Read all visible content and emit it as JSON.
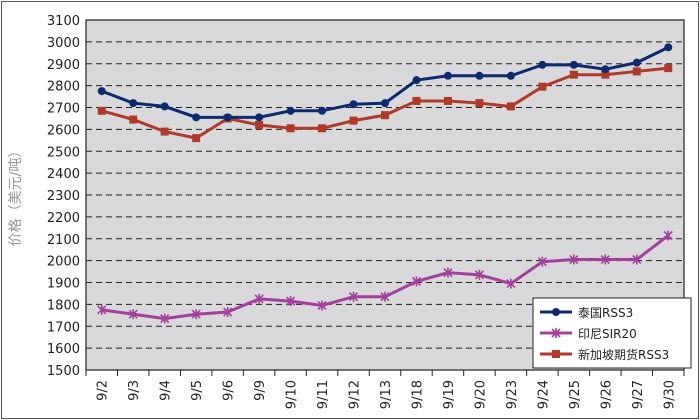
{
  "chart_data": {
    "type": "line",
    "title": "",
    "xlabel": "",
    "ylabel": "价格（美元/吨）",
    "ylim": [
      1500,
      3100
    ],
    "yticks": [
      1500,
      1600,
      1700,
      1800,
      1900,
      2000,
      2100,
      2200,
      2300,
      2400,
      2500,
      2600,
      2700,
      2800,
      2900,
      3000,
      3100
    ],
    "grid": "horizontal-dashed",
    "legend_position": "bottom-right",
    "categories": [
      "9/2",
      "9/3",
      "9/4",
      "9/5",
      "9/6",
      "9/9",
      "9/10",
      "9/11",
      "9/12",
      "9/13",
      "9/18",
      "9/19",
      "9/20",
      "9/23",
      "9/24",
      "9/25",
      "9/26",
      "9/27",
      "9/30"
    ],
    "series": [
      {
        "name": "泰国RSS3",
        "color": "#0d2a6e",
        "marker": "circle",
        "values": [
          2775,
          2720,
          2705,
          2655,
          2655,
          2655,
          2685,
          2685,
          2715,
          2720,
          2825,
          2845,
          2845,
          2845,
          2895,
          2895,
          2875,
          2905,
          2975
        ]
      },
      {
        "name": "印尼SIR20",
        "color": "#a3409b",
        "marker": "asterisk",
        "values": [
          1775,
          1755,
          1735,
          1755,
          1765,
          1825,
          1815,
          1795,
          1835,
          1835,
          1905,
          1945,
          1935,
          1895,
          1995,
          2005,
          2005,
          2005,
          2115
        ]
      },
      {
        "name": "新加坡期货RSS3",
        "color": "#b03a2a",
        "marker": "square",
        "values": [
          2685,
          2645,
          2590,
          2560,
          2650,
          2620,
          2605,
          2605,
          2640,
          2665,
          2730,
          2730,
          2720,
          2705,
          2795,
          2850,
          2850,
          2865,
          2880
        ]
      }
    ],
    "plot_background": "#d9d9dc"
  }
}
